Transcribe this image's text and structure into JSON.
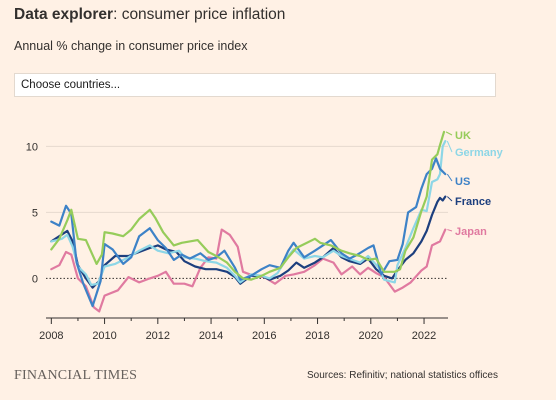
{
  "header": {
    "title_bold": "Data explorer",
    "title_rest": ": consumer price inflation",
    "subtitle": "Annual % change in consumer price index"
  },
  "controls": {
    "country_select_label": "Choose countries..."
  },
  "footer": {
    "brand": "FINANCIAL TIMES",
    "source": "Sources: Refinitiv; national statistics offices"
  },
  "chart_data": {
    "type": "line",
    "title": "",
    "xlabel": "",
    "ylabel": "",
    "xlim": [
      2007.8,
      2022.9
    ],
    "ylim": [
      -3,
      12
    ],
    "x_ticks": [
      2008,
      2010,
      2012,
      2014,
      2016,
      2018,
      2020,
      2022
    ],
    "y_ticks": [
      0,
      5,
      10
    ],
    "zero_line": "dotted",
    "grid": "horizontal",
    "legend": "end-of-line labels",
    "series": [
      {
        "name": "Japan",
        "color": "#e07aa0",
        "points": [
          [
            2008.0,
            0.7
          ],
          [
            2008.3,
            1.0
          ],
          [
            2008.55,
            2.0
          ],
          [
            2008.75,
            1.8
          ],
          [
            2009.0,
            0.0
          ],
          [
            2009.3,
            -0.6
          ],
          [
            2009.6,
            -2.2
          ],
          [
            2009.8,
            -2.5
          ],
          [
            2010.0,
            -1.3
          ],
          [
            2010.5,
            -0.9
          ],
          [
            2010.9,
            0.1
          ],
          [
            2011.3,
            -0.3
          ],
          [
            2011.7,
            0.0
          ],
          [
            2012.0,
            0.2
          ],
          [
            2012.3,
            0.5
          ],
          [
            2012.6,
            -0.4
          ],
          [
            2013.0,
            -0.4
          ],
          [
            2013.3,
            -0.6
          ],
          [
            2013.6,
            0.8
          ],
          [
            2013.9,
            1.6
          ],
          [
            2014.2,
            1.5
          ],
          [
            2014.4,
            3.7
          ],
          [
            2014.7,
            3.3
          ],
          [
            2015.0,
            2.4
          ],
          [
            2015.2,
            0.5
          ],
          [
            2015.6,
            0.2
          ],
          [
            2016.0,
            0.1
          ],
          [
            2016.4,
            -0.4
          ],
          [
            2016.8,
            0.2
          ],
          [
            2017.1,
            0.3
          ],
          [
            2017.5,
            0.5
          ],
          [
            2017.9,
            1.0
          ],
          [
            2018.2,
            1.5
          ],
          [
            2018.6,
            1.2
          ],
          [
            2018.9,
            0.3
          ],
          [
            2019.3,
            0.9
          ],
          [
            2019.6,
            0.3
          ],
          [
            2019.9,
            0.8
          ],
          [
            2020.2,
            0.4
          ],
          [
            2020.5,
            0.1
          ],
          [
            2020.9,
            -1.0
          ],
          [
            2021.2,
            -0.7
          ],
          [
            2021.5,
            -0.3
          ],
          [
            2021.9,
            0.6
          ],
          [
            2022.1,
            0.9
          ],
          [
            2022.3,
            2.5
          ],
          [
            2022.6,
            2.8
          ],
          [
            2022.8,
            3.7
          ]
        ]
      },
      {
        "name": "France",
        "color": "#1d3f7e",
        "points": [
          [
            2008.0,
            2.8
          ],
          [
            2008.3,
            3.2
          ],
          [
            2008.6,
            3.6
          ],
          [
            2008.8,
            2.8
          ],
          [
            2009.0,
            1.0
          ],
          [
            2009.3,
            0.0
          ],
          [
            2009.55,
            -0.7
          ],
          [
            2009.8,
            -0.2
          ],
          [
            2010.0,
            1.0
          ],
          [
            2010.4,
            1.7
          ],
          [
            2010.9,
            1.7
          ],
          [
            2011.3,
            2.0
          ],
          [
            2011.7,
            2.3
          ],
          [
            2012.0,
            2.5
          ],
          [
            2012.3,
            2.2
          ],
          [
            2012.7,
            2.0
          ],
          [
            2013.0,
            1.3
          ],
          [
            2013.4,
            0.9
          ],
          [
            2013.8,
            0.7
          ],
          [
            2014.2,
            0.7
          ],
          [
            2014.6,
            0.5
          ],
          [
            2014.9,
            0.1
          ],
          [
            2015.1,
            -0.4
          ],
          [
            2015.5,
            0.2
          ],
          [
            2015.9,
            0.2
          ],
          [
            2016.2,
            -0.1
          ],
          [
            2016.6,
            0.2
          ],
          [
            2016.9,
            0.6
          ],
          [
            2017.2,
            1.2
          ],
          [
            2017.5,
            0.8
          ],
          [
            2017.9,
            1.2
          ],
          [
            2018.2,
            1.6
          ],
          [
            2018.6,
            2.3
          ],
          [
            2018.9,
            1.6
          ],
          [
            2019.2,
            1.3
          ],
          [
            2019.6,
            1.1
          ],
          [
            2019.9,
            1.5
          ],
          [
            2020.2,
            0.7
          ],
          [
            2020.5,
            0.2
          ],
          [
            2020.8,
            0.0
          ],
          [
            2021.0,
            0.6
          ],
          [
            2021.3,
            1.4
          ],
          [
            2021.6,
            1.9
          ],
          [
            2021.9,
            2.8
          ],
          [
            2022.1,
            3.6
          ],
          [
            2022.3,
            4.8
          ],
          [
            2022.5,
            5.8
          ],
          [
            2022.6,
            6.1
          ],
          [
            2022.7,
            5.9
          ],
          [
            2022.8,
            6.2
          ]
        ]
      },
      {
        "name": "Germany",
        "color": "#8dd6e6",
        "points": [
          [
            2008.0,
            2.8
          ],
          [
            2008.4,
            3.0
          ],
          [
            2008.6,
            3.3
          ],
          [
            2008.8,
            2.4
          ],
          [
            2009.0,
            0.9
          ],
          [
            2009.3,
            0.3
          ],
          [
            2009.5,
            -0.5
          ],
          [
            2009.75,
            -0.4
          ],
          [
            2010.0,
            0.9
          ],
          [
            2010.4,
            1.1
          ],
          [
            2010.9,
            1.6
          ],
          [
            2011.3,
            2.1
          ],
          [
            2011.7,
            2.5
          ],
          [
            2012.0,
            2.1
          ],
          [
            2012.4,
            1.9
          ],
          [
            2012.8,
            2.1
          ],
          [
            2013.0,
            1.6
          ],
          [
            2013.4,
            1.5
          ],
          [
            2013.8,
            1.3
          ],
          [
            2014.2,
            1.2
          ],
          [
            2014.6,
            0.8
          ],
          [
            2014.9,
            0.2
          ],
          [
            2015.1,
            -0.3
          ],
          [
            2015.5,
            0.3
          ],
          [
            2015.9,
            0.2
          ],
          [
            2016.2,
            0.0
          ],
          [
            2016.5,
            0.4
          ],
          [
            2016.9,
            1.7
          ],
          [
            2017.1,
            2.2
          ],
          [
            2017.5,
            1.5
          ],
          [
            2017.9,
            1.7
          ],
          [
            2018.2,
            1.6
          ],
          [
            2018.6,
            2.1
          ],
          [
            2018.9,
            1.7
          ],
          [
            2019.3,
            1.4
          ],
          [
            2019.6,
            1.2
          ],
          [
            2019.9,
            1.7
          ],
          [
            2020.3,
            0.8
          ],
          [
            2020.5,
            -0.1
          ],
          [
            2020.9,
            -0.3
          ],
          [
            2021.0,
            1.0
          ],
          [
            2021.3,
            2.3
          ],
          [
            2021.6,
            3.8
          ],
          [
            2021.9,
            5.2
          ],
          [
            2022.1,
            5.1
          ],
          [
            2022.3,
            7.3
          ],
          [
            2022.5,
            7.5
          ],
          [
            2022.6,
            7.9
          ],
          [
            2022.7,
            10.0
          ],
          [
            2022.8,
            10.4
          ]
        ]
      },
      {
        "name": "US",
        "color": "#3d82c7",
        "points": [
          [
            2008.0,
            4.3
          ],
          [
            2008.3,
            4.0
          ],
          [
            2008.55,
            5.5
          ],
          [
            2008.75,
            4.9
          ],
          [
            2008.95,
            1.2
          ],
          [
            2009.2,
            -0.4
          ],
          [
            2009.55,
            -2.1
          ],
          [
            2009.85,
            -0.2
          ],
          [
            2010.0,
            2.6
          ],
          [
            2010.3,
            2.2
          ],
          [
            2010.7,
            1.1
          ],
          [
            2011.0,
            1.6
          ],
          [
            2011.3,
            3.2
          ],
          [
            2011.7,
            3.8
          ],
          [
            2012.0,
            2.9
          ],
          [
            2012.3,
            2.3
          ],
          [
            2012.6,
            1.4
          ],
          [
            2012.9,
            1.8
          ],
          [
            2013.2,
            1.5
          ],
          [
            2013.6,
            1.9
          ],
          [
            2013.9,
            1.4
          ],
          [
            2014.2,
            1.6
          ],
          [
            2014.5,
            2.1
          ],
          [
            2014.9,
            0.8
          ],
          [
            2015.1,
            -0.1
          ],
          [
            2015.5,
            0.2
          ],
          [
            2015.9,
            0.7
          ],
          [
            2016.2,
            1.0
          ],
          [
            2016.6,
            0.8
          ],
          [
            2016.9,
            2.1
          ],
          [
            2017.1,
            2.7
          ],
          [
            2017.5,
            1.6
          ],
          [
            2017.9,
            2.1
          ],
          [
            2018.2,
            2.5
          ],
          [
            2018.5,
            2.9
          ],
          [
            2018.9,
            1.9
          ],
          [
            2019.2,
            1.5
          ],
          [
            2019.5,
            1.8
          ],
          [
            2019.9,
            2.3
          ],
          [
            2020.1,
            2.5
          ],
          [
            2020.4,
            0.3
          ],
          [
            2020.7,
            1.3
          ],
          [
            2021.0,
            1.4
          ],
          [
            2021.2,
            2.6
          ],
          [
            2021.4,
            5.0
          ],
          [
            2021.7,
            5.4
          ],
          [
            2021.9,
            6.8
          ],
          [
            2022.1,
            7.9
          ],
          [
            2022.3,
            8.3
          ],
          [
            2022.45,
            9.1
          ],
          [
            2022.6,
            8.3
          ],
          [
            2022.8,
            7.9
          ]
        ]
      },
      {
        "name": "UK",
        "color": "#96cc5a",
        "points": [
          [
            2008.0,
            2.2
          ],
          [
            2008.3,
            3.0
          ],
          [
            2008.6,
            4.4
          ],
          [
            2008.75,
            5.2
          ],
          [
            2009.0,
            3.0
          ],
          [
            2009.3,
            2.9
          ],
          [
            2009.7,
            1.1
          ],
          [
            2009.9,
            1.8
          ],
          [
            2010.0,
            3.5
          ],
          [
            2010.3,
            3.4
          ],
          [
            2010.7,
            3.2
          ],
          [
            2011.0,
            3.7
          ],
          [
            2011.3,
            4.5
          ],
          [
            2011.7,
            5.2
          ],
          [
            2011.9,
            4.6
          ],
          [
            2012.2,
            3.5
          ],
          [
            2012.6,
            2.5
          ],
          [
            2012.9,
            2.7
          ],
          [
            2013.2,
            2.8
          ],
          [
            2013.5,
            2.9
          ],
          [
            2013.9,
            2.0
          ],
          [
            2014.2,
            1.7
          ],
          [
            2014.6,
            1.2
          ],
          [
            2014.9,
            0.5
          ],
          [
            2015.2,
            0.0
          ],
          [
            2015.5,
            -0.1
          ],
          [
            2015.9,
            0.2
          ],
          [
            2016.2,
            0.5
          ],
          [
            2016.6,
            0.8
          ],
          [
            2016.9,
            1.6
          ],
          [
            2017.2,
            2.3
          ],
          [
            2017.5,
            2.6
          ],
          [
            2017.9,
            3.0
          ],
          [
            2018.1,
            2.7
          ],
          [
            2018.5,
            2.5
          ],
          [
            2018.9,
            2.1
          ],
          [
            2019.2,
            1.9
          ],
          [
            2019.6,
            1.7
          ],
          [
            2019.9,
            1.4
          ],
          [
            2020.2,
            1.5
          ],
          [
            2020.5,
            0.5
          ],
          [
            2020.9,
            0.5
          ],
          [
            2021.1,
            0.7
          ],
          [
            2021.3,
            2.1
          ],
          [
            2021.6,
            3.1
          ],
          [
            2021.9,
            5.1
          ],
          [
            2022.1,
            6.2
          ],
          [
            2022.3,
            9.0
          ],
          [
            2022.5,
            9.4
          ],
          [
            2022.6,
            10.1
          ],
          [
            2022.75,
            11.1
          ]
        ]
      }
    ]
  }
}
